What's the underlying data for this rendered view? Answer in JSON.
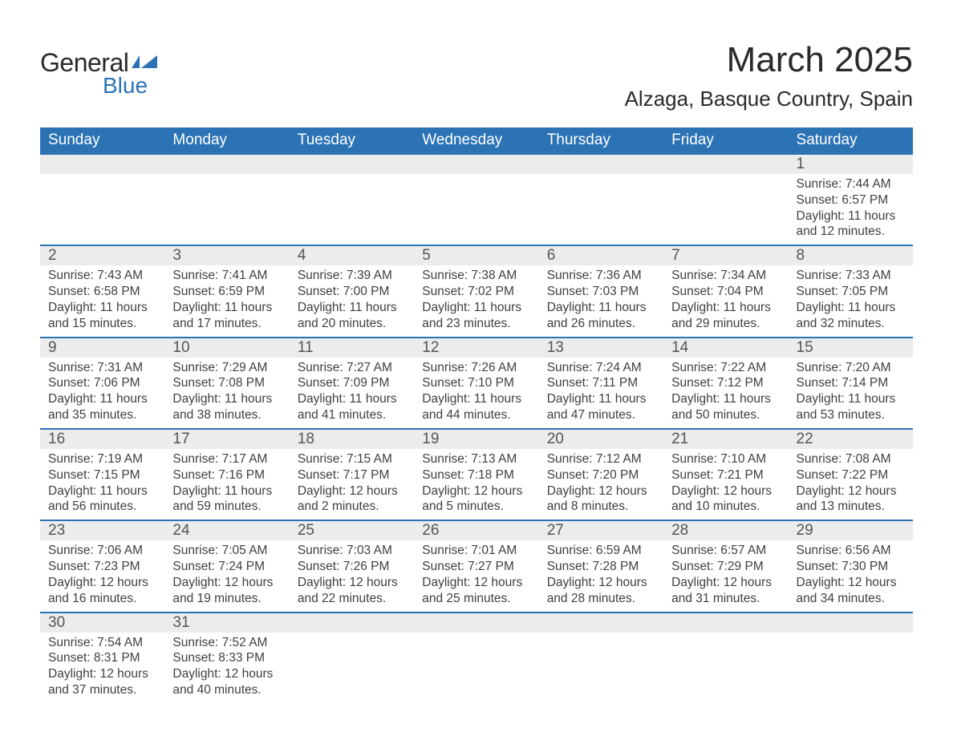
{
  "brand": {
    "general": "General",
    "blue": "Blue",
    "shape_color": "#2b73b5"
  },
  "title": "March 2025",
  "location": "Alzaga, Basque Country, Spain",
  "colors": {
    "header_bg": "#2b73b5",
    "header_text": "#ffffff",
    "daynum_bg": "#ececec",
    "grid_border": "#2b73b5",
    "body_text": "#404040"
  },
  "days_of_week": [
    "Sunday",
    "Monday",
    "Tuesday",
    "Wednesday",
    "Thursday",
    "Friday",
    "Saturday"
  ],
  "weeks": [
    [
      null,
      null,
      null,
      null,
      null,
      null,
      {
        "n": "1",
        "sunrise": "Sunrise: 7:44 AM",
        "sunset": "Sunset: 6:57 PM",
        "day1": "Daylight: 11 hours",
        "day2": "and 12 minutes."
      }
    ],
    [
      {
        "n": "2",
        "sunrise": "Sunrise: 7:43 AM",
        "sunset": "Sunset: 6:58 PM",
        "day1": "Daylight: 11 hours",
        "day2": "and 15 minutes."
      },
      {
        "n": "3",
        "sunrise": "Sunrise: 7:41 AM",
        "sunset": "Sunset: 6:59 PM",
        "day1": "Daylight: 11 hours",
        "day2": "and 17 minutes."
      },
      {
        "n": "4",
        "sunrise": "Sunrise: 7:39 AM",
        "sunset": "Sunset: 7:00 PM",
        "day1": "Daylight: 11 hours",
        "day2": "and 20 minutes."
      },
      {
        "n": "5",
        "sunrise": "Sunrise: 7:38 AM",
        "sunset": "Sunset: 7:02 PM",
        "day1": "Daylight: 11 hours",
        "day2": "and 23 minutes."
      },
      {
        "n": "6",
        "sunrise": "Sunrise: 7:36 AM",
        "sunset": "Sunset: 7:03 PM",
        "day1": "Daylight: 11 hours",
        "day2": "and 26 minutes."
      },
      {
        "n": "7",
        "sunrise": "Sunrise: 7:34 AM",
        "sunset": "Sunset: 7:04 PM",
        "day1": "Daylight: 11 hours",
        "day2": "and 29 minutes."
      },
      {
        "n": "8",
        "sunrise": "Sunrise: 7:33 AM",
        "sunset": "Sunset: 7:05 PM",
        "day1": "Daylight: 11 hours",
        "day2": "and 32 minutes."
      }
    ],
    [
      {
        "n": "9",
        "sunrise": "Sunrise: 7:31 AM",
        "sunset": "Sunset: 7:06 PM",
        "day1": "Daylight: 11 hours",
        "day2": "and 35 minutes."
      },
      {
        "n": "10",
        "sunrise": "Sunrise: 7:29 AM",
        "sunset": "Sunset: 7:08 PM",
        "day1": "Daylight: 11 hours",
        "day2": "and 38 minutes."
      },
      {
        "n": "11",
        "sunrise": "Sunrise: 7:27 AM",
        "sunset": "Sunset: 7:09 PM",
        "day1": "Daylight: 11 hours",
        "day2": "and 41 minutes."
      },
      {
        "n": "12",
        "sunrise": "Sunrise: 7:26 AM",
        "sunset": "Sunset: 7:10 PM",
        "day1": "Daylight: 11 hours",
        "day2": "and 44 minutes."
      },
      {
        "n": "13",
        "sunrise": "Sunrise: 7:24 AM",
        "sunset": "Sunset: 7:11 PM",
        "day1": "Daylight: 11 hours",
        "day2": "and 47 minutes."
      },
      {
        "n": "14",
        "sunrise": "Sunrise: 7:22 AM",
        "sunset": "Sunset: 7:12 PM",
        "day1": "Daylight: 11 hours",
        "day2": "and 50 minutes."
      },
      {
        "n": "15",
        "sunrise": "Sunrise: 7:20 AM",
        "sunset": "Sunset: 7:14 PM",
        "day1": "Daylight: 11 hours",
        "day2": "and 53 minutes."
      }
    ],
    [
      {
        "n": "16",
        "sunrise": "Sunrise: 7:19 AM",
        "sunset": "Sunset: 7:15 PM",
        "day1": "Daylight: 11 hours",
        "day2": "and 56 minutes."
      },
      {
        "n": "17",
        "sunrise": "Sunrise: 7:17 AM",
        "sunset": "Sunset: 7:16 PM",
        "day1": "Daylight: 11 hours",
        "day2": "and 59 minutes."
      },
      {
        "n": "18",
        "sunrise": "Sunrise: 7:15 AM",
        "sunset": "Sunset: 7:17 PM",
        "day1": "Daylight: 12 hours",
        "day2": "and 2 minutes."
      },
      {
        "n": "19",
        "sunrise": "Sunrise: 7:13 AM",
        "sunset": "Sunset: 7:18 PM",
        "day1": "Daylight: 12 hours",
        "day2": "and 5 minutes."
      },
      {
        "n": "20",
        "sunrise": "Sunrise: 7:12 AM",
        "sunset": "Sunset: 7:20 PM",
        "day1": "Daylight: 12 hours",
        "day2": "and 8 minutes."
      },
      {
        "n": "21",
        "sunrise": "Sunrise: 7:10 AM",
        "sunset": "Sunset: 7:21 PM",
        "day1": "Daylight: 12 hours",
        "day2": "and 10 minutes."
      },
      {
        "n": "22",
        "sunrise": "Sunrise: 7:08 AM",
        "sunset": "Sunset: 7:22 PM",
        "day1": "Daylight: 12 hours",
        "day2": "and 13 minutes."
      }
    ],
    [
      {
        "n": "23",
        "sunrise": "Sunrise: 7:06 AM",
        "sunset": "Sunset: 7:23 PM",
        "day1": "Daylight: 12 hours",
        "day2": "and 16 minutes."
      },
      {
        "n": "24",
        "sunrise": "Sunrise: 7:05 AM",
        "sunset": "Sunset: 7:24 PM",
        "day1": "Daylight: 12 hours",
        "day2": "and 19 minutes."
      },
      {
        "n": "25",
        "sunrise": "Sunrise: 7:03 AM",
        "sunset": "Sunset: 7:26 PM",
        "day1": "Daylight: 12 hours",
        "day2": "and 22 minutes."
      },
      {
        "n": "26",
        "sunrise": "Sunrise: 7:01 AM",
        "sunset": "Sunset: 7:27 PM",
        "day1": "Daylight: 12 hours",
        "day2": "and 25 minutes."
      },
      {
        "n": "27",
        "sunrise": "Sunrise: 6:59 AM",
        "sunset": "Sunset: 7:28 PM",
        "day1": "Daylight: 12 hours",
        "day2": "and 28 minutes."
      },
      {
        "n": "28",
        "sunrise": "Sunrise: 6:57 AM",
        "sunset": "Sunset: 7:29 PM",
        "day1": "Daylight: 12 hours",
        "day2": "and 31 minutes."
      },
      {
        "n": "29",
        "sunrise": "Sunrise: 6:56 AM",
        "sunset": "Sunset: 7:30 PM",
        "day1": "Daylight: 12 hours",
        "day2": "and 34 minutes."
      }
    ],
    [
      {
        "n": "30",
        "sunrise": "Sunrise: 7:54 AM",
        "sunset": "Sunset: 8:31 PM",
        "day1": "Daylight: 12 hours",
        "day2": "and 37 minutes."
      },
      {
        "n": "31",
        "sunrise": "Sunrise: 7:52 AM",
        "sunset": "Sunset: 8:33 PM",
        "day1": "Daylight: 12 hours",
        "day2": "and 40 minutes."
      },
      null,
      null,
      null,
      null,
      null
    ]
  ]
}
